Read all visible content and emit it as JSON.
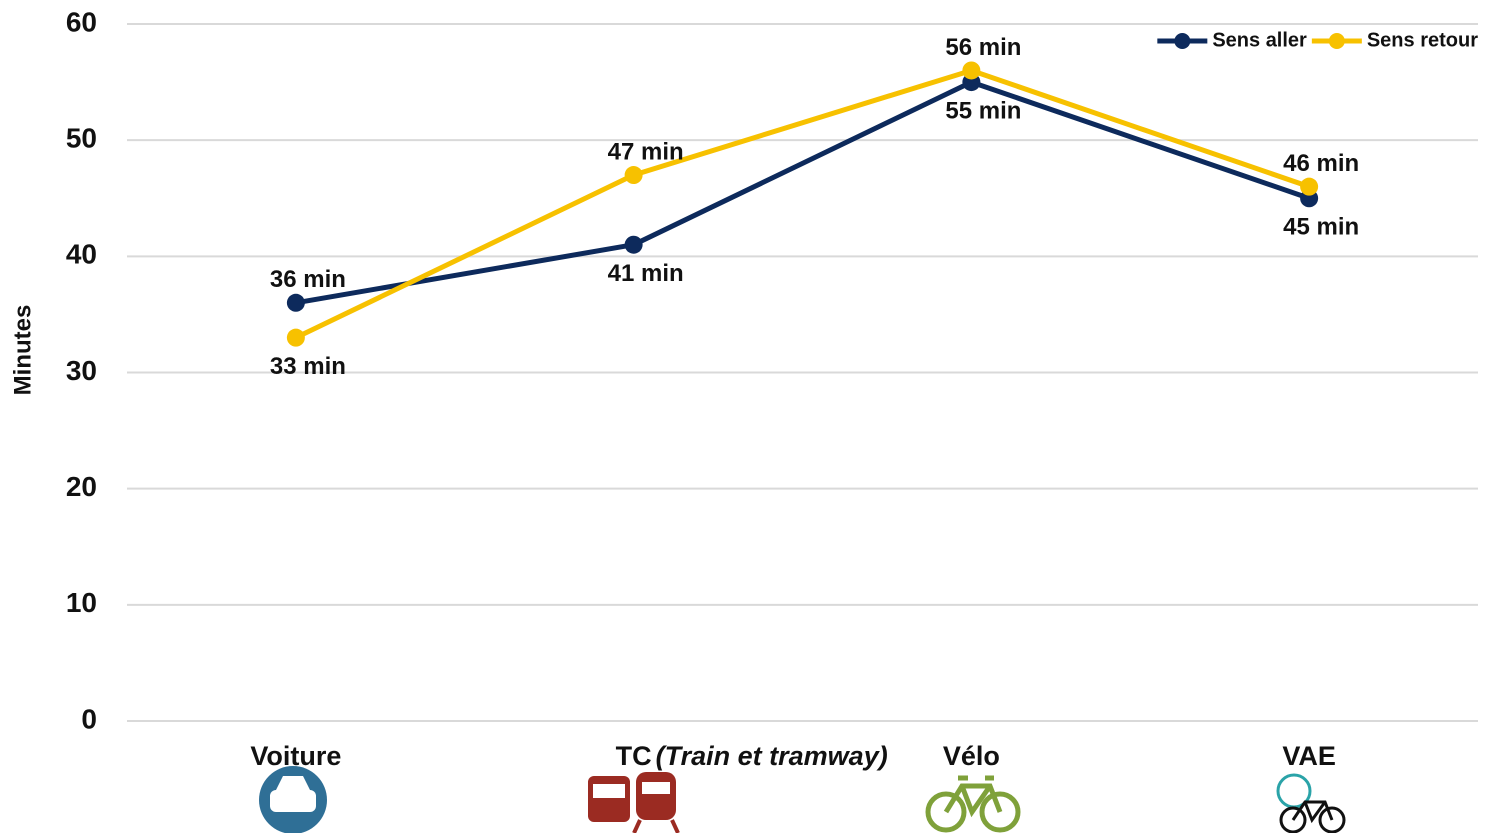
{
  "chart_data": {
    "type": "line",
    "y_label": "Minutes",
    "categories": [
      "Voiture",
      "TC",
      "Vélo",
      "VAE"
    ],
    "category_notes": [
      null,
      "(Train et tramway)",
      null,
      null
    ],
    "series": [
      {
        "name": "Sens aller",
        "color": "#0d2a5c",
        "values": [
          36,
          41,
          55,
          45
        ],
        "value_labels": [
          "36 min",
          "41 min",
          "55 min",
          "45 min"
        ]
      },
      {
        "name": "Sens retour",
        "color": "#f7c100",
        "values": [
          33,
          47,
          56,
          46
        ],
        "value_labels": [
          "33 min",
          "47 min",
          "56 min",
          "46 min"
        ]
      }
    ],
    "ylim": [
      0,
      60
    ],
    "yticks": [
      0,
      10,
      20,
      30,
      40,
      50,
      60
    ],
    "grid": true,
    "legend": "top-right"
  }
}
